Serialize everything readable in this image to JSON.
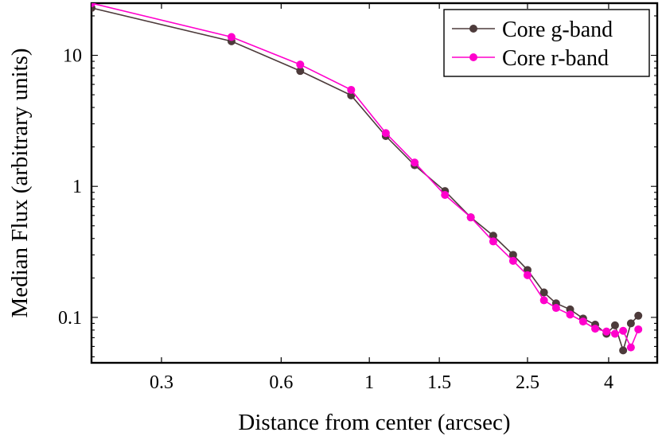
{
  "chart_data": {
    "type": "line",
    "title": "",
    "xlabel": "Distance from center (arcsec)",
    "ylabel": "Median Flux (arbitrary units)",
    "x_scale": "log",
    "y_scale": "log",
    "xlim": [
      0.2,
      5.3
    ],
    "ylim": [
      0.045,
      25
    ],
    "x_ticks": [
      {
        "value": 0.3,
        "label": "0.3"
      },
      {
        "value": 0.6,
        "label": "0.6"
      },
      {
        "value": 1,
        "label": "1"
      },
      {
        "value": 1.5,
        "label": "1.5"
      },
      {
        "value": 2.5,
        "label": "2.5"
      },
      {
        "value": 4,
        "label": "4"
      }
    ],
    "y_ticks": [
      {
        "value": 0.1,
        "label": "0.1"
      },
      {
        "value": 1,
        "label": "1"
      },
      {
        "value": 10,
        "label": "10"
      }
    ],
    "grid": false,
    "legend_position": "top-right",
    "series": [
      {
        "name": "Core g-band",
        "color": "#4d3b3b",
        "x": [
          0.2,
          0.45,
          0.67,
          0.9,
          1.1,
          1.3,
          1.55,
          1.8,
          2.05,
          2.3,
          2.5,
          2.75,
          2.95,
          3.2,
          3.45,
          3.7,
          3.95,
          4.15,
          4.35,
          4.55,
          4.75
        ],
        "y": [
          23,
          12.8,
          7.6,
          4.95,
          2.42,
          1.45,
          0.92,
          0.58,
          0.42,
          0.3,
          0.23,
          0.155,
          0.128,
          0.115,
          0.098,
          0.088,
          0.075,
          0.087,
          0.056,
          0.09,
          0.103
        ]
      },
      {
        "name": "Core r-band",
        "color": "#ff00cc",
        "x": [
          0.2,
          0.45,
          0.67,
          0.9,
          1.1,
          1.3,
          1.55,
          1.8,
          2.05,
          2.3,
          2.5,
          2.75,
          2.95,
          3.2,
          3.45,
          3.7,
          3.95,
          4.15,
          4.35,
          4.55,
          4.75
        ],
        "y": [
          25,
          13.8,
          8.5,
          5.45,
          2.55,
          1.52,
          0.86,
          0.58,
          0.38,
          0.27,
          0.21,
          0.135,
          0.118,
          0.105,
          0.093,
          0.082,
          0.078,
          0.075,
          0.079,
          0.059,
          0.081
        ]
      }
    ]
  }
}
